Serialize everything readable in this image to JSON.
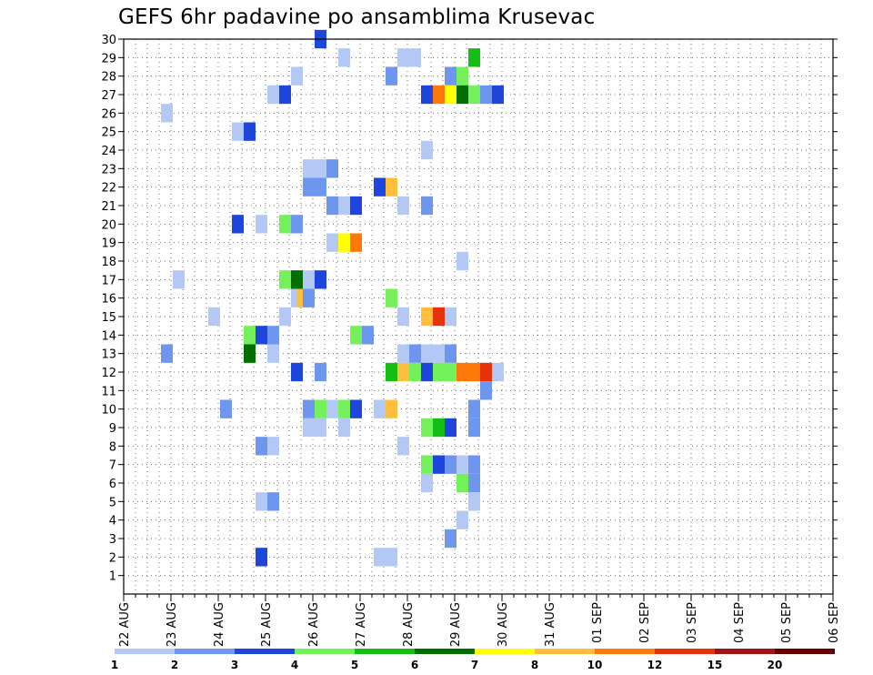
{
  "chart_data": {
    "type": "heatmap",
    "title": "GEFS 6hr padavine po ansamblima Krusevac",
    "xlabel": "",
    "ylabel": "",
    "x_tick_labels": [
      "22 AUG",
      "23 AUG",
      "24 AUG",
      "25 AUG",
      "26 AUG",
      "27 AUG",
      "28 AUG",
      "29 AUG",
      "30 AUG",
      "31 AUG",
      "01 SEP",
      "02 SEP",
      "03 SEP",
      "04 SEP",
      "05 SEP",
      "06 SEP"
    ],
    "y_tick_labels": [
      "1",
      "2",
      "3",
      "4",
      "5",
      "6",
      "7",
      "8",
      "9",
      "10",
      "11",
      "12",
      "13",
      "14",
      "15",
      "16",
      "17",
      "18",
      "19",
      "20",
      "21",
      "22",
      "23",
      "24",
      "25",
      "26",
      "27",
      "28",
      "29",
      "30"
    ],
    "y_range": [
      0,
      30
    ],
    "x_range_steps": [
      0,
      60
    ],
    "steps_per_day": 4,
    "grid": true,
    "colorbar": {
      "boundaries": [
        "1",
        "2",
        "3",
        "4",
        "5",
        "6",
        "7",
        "8",
        "10",
        "12",
        "15",
        "20"
      ],
      "colors": [
        "#b4c8f5",
        "#6e96ee",
        "#1e46dc",
        "#73f05a",
        "#14be14",
        "#006e00",
        "#ffff00",
        "#ffbe3c",
        "#ff780a",
        "#e6320a",
        "#a01414",
        "#640000"
      ]
    },
    "cells": [
      [
        30,
        17,
        3
      ],
      [
        29,
        19,
        1
      ],
      [
        29,
        24,
        1
      ],
      [
        29,
        25,
        1
      ],
      [
        29,
        30,
        5
      ],
      [
        28,
        15,
        1
      ],
      [
        28,
        23,
        2
      ],
      [
        28,
        28,
        2
      ],
      [
        28,
        29,
        4
      ],
      [
        27,
        13,
        1
      ],
      [
        27,
        14,
        3
      ],
      [
        27,
        26,
        3
      ],
      [
        27,
        27,
        9
      ],
      [
        27,
        28,
        7
      ],
      [
        27,
        29,
        6
      ],
      [
        27,
        30,
        4
      ],
      [
        27,
        31,
        2
      ],
      [
        27,
        32,
        3
      ],
      [
        26,
        4,
        1
      ],
      [
        25,
        10,
        1
      ],
      [
        25,
        11,
        3
      ],
      [
        24,
        26,
        1
      ],
      [
        23,
        16,
        1
      ],
      [
        23,
        17,
        1
      ],
      [
        23,
        18,
        2
      ],
      [
        22,
        16,
        2
      ],
      [
        22,
        17,
        2
      ],
      [
        22,
        22,
        3
      ],
      [
        22,
        23,
        8
      ],
      [
        21,
        18,
        2
      ],
      [
        21,
        19,
        1
      ],
      [
        21,
        20,
        3
      ],
      [
        21,
        24,
        1
      ],
      [
        21,
        26,
        2
      ],
      [
        20,
        10,
        3
      ],
      [
        20,
        12,
        1
      ],
      [
        20,
        14,
        4
      ],
      [
        20,
        15,
        2
      ],
      [
        19,
        18,
        1
      ],
      [
        19,
        19,
        7
      ],
      [
        19,
        20,
        9
      ],
      [
        18,
        29,
        1
      ],
      [
        17,
        5,
        1
      ],
      [
        17,
        14,
        4
      ],
      [
        17,
        15,
        6
      ],
      [
        17,
        16,
        1
      ],
      [
        17,
        17,
        3
      ],
      [
        16,
        15,
        1
      ],
      [
        16,
        15.5,
        8
      ],
      [
        16,
        16,
        2
      ],
      [
        16,
        23,
        4
      ],
      [
        15,
        8,
        1
      ],
      [
        15,
        14,
        1
      ],
      [
        15,
        24,
        1
      ],
      [
        15,
        26,
        8
      ],
      [
        15,
        27,
        10
      ],
      [
        15,
        28,
        1
      ],
      [
        14,
        11,
        4
      ],
      [
        14,
        12,
        3
      ],
      [
        14,
        13,
        2
      ],
      [
        14,
        20,
        4
      ],
      [
        14,
        21,
        2
      ],
      [
        13,
        4,
        2
      ],
      [
        13,
        11,
        6
      ],
      [
        13,
        13,
        1
      ],
      [
        13,
        24,
        1
      ],
      [
        13,
        25,
        2
      ],
      [
        13,
        26,
        1
      ],
      [
        13,
        27,
        1
      ],
      [
        13,
        28,
        2
      ],
      [
        12,
        15,
        3
      ],
      [
        12,
        17,
        2
      ],
      [
        12,
        23,
        5
      ],
      [
        12,
        24,
        8
      ],
      [
        12,
        25,
        4
      ],
      [
        12,
        26,
        3
      ],
      [
        12,
        27,
        4
      ],
      [
        12,
        28,
        4
      ],
      [
        12,
        29,
        9
      ],
      [
        12,
        30,
        9
      ],
      [
        12,
        31,
        10
      ],
      [
        12,
        32,
        1
      ],
      [
        11,
        31,
        2
      ],
      [
        10,
        9,
        2
      ],
      [
        10,
        16,
        2
      ],
      [
        10,
        17,
        4
      ],
      [
        10,
        18,
        1
      ],
      [
        10,
        19,
        4
      ],
      [
        10,
        20,
        3
      ],
      [
        10,
        22,
        1
      ],
      [
        10,
        23,
        8
      ],
      [
        10,
        30,
        2
      ],
      [
        9,
        16,
        1
      ],
      [
        9,
        17,
        1
      ],
      [
        9,
        19,
        1
      ],
      [
        9,
        26,
        4
      ],
      [
        9,
        27,
        5
      ],
      [
        9,
        28,
        3
      ],
      [
        9,
        30,
        2
      ],
      [
        8,
        12,
        2
      ],
      [
        8,
        13,
        1
      ],
      [
        8,
        24,
        1
      ],
      [
        7,
        26,
        4
      ],
      [
        7,
        27,
        3
      ],
      [
        7,
        28,
        2
      ],
      [
        7,
        29,
        1
      ],
      [
        7,
        30,
        2
      ],
      [
        6,
        26,
        1
      ],
      [
        6,
        29,
        4
      ],
      [
        6,
        30,
        2
      ],
      [
        5,
        12,
        1
      ],
      [
        5,
        13,
        2
      ],
      [
        5,
        30,
        1
      ],
      [
        4,
        29,
        1
      ],
      [
        3,
        28,
        2
      ],
      [
        2,
        12,
        3
      ],
      [
        2,
        22,
        1
      ],
      [
        2,
        23,
        1
      ]
    ]
  }
}
